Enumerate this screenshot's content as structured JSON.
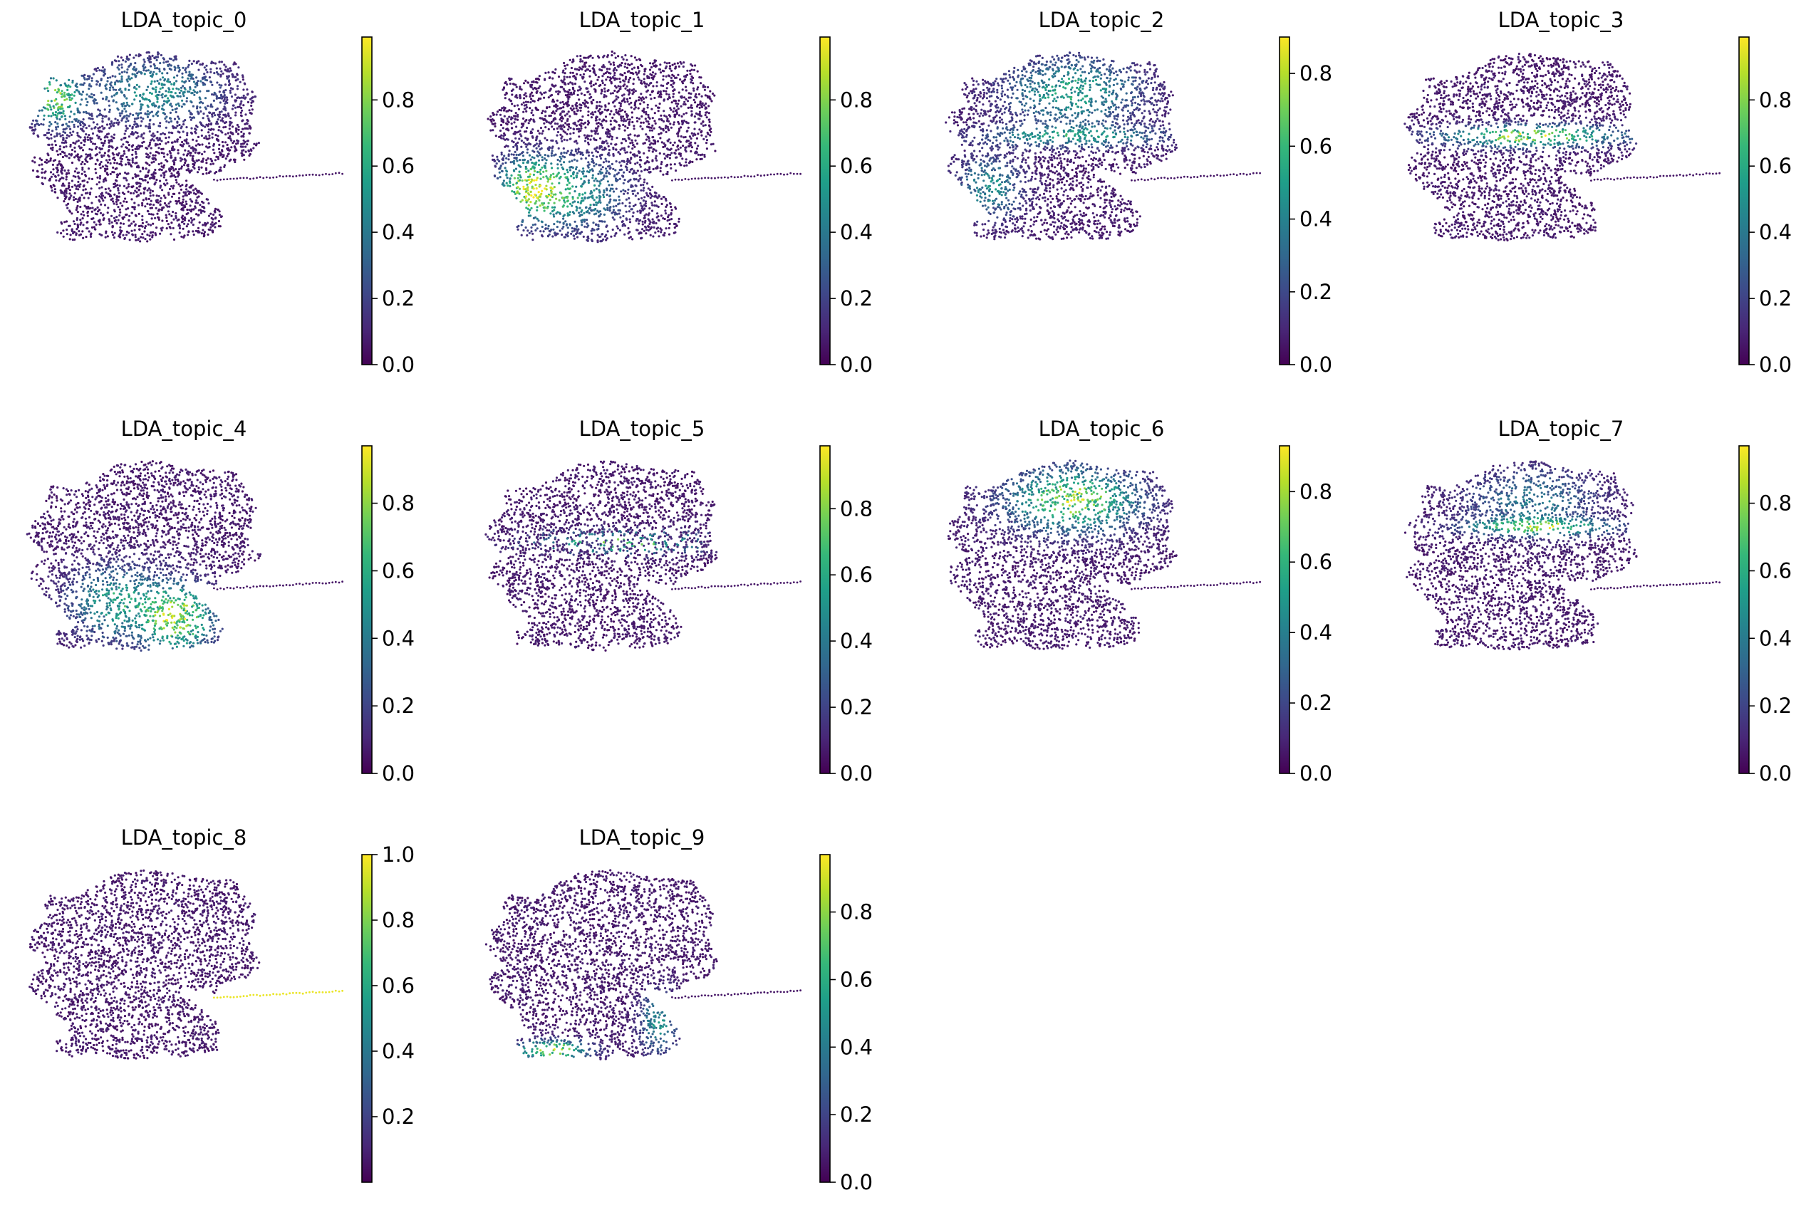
{
  "figure": {
    "type": "embedding_scatter_grid",
    "colormap": "viridis",
    "colormap_stops": [
      "#440154",
      "#482878",
      "#3e4989",
      "#31688e",
      "#26828e",
      "#1f9e89",
      "#35b779",
      "#6ece58",
      "#b5de2b",
      "#fde725"
    ],
    "point_color_low": "#440154",
    "axes_visible": false
  },
  "chart_data": [
    {
      "type": "scatter",
      "title": "LDA_topic_0",
      "colorbar": {
        "range": [
          0.0,
          0.99
        ],
        "ticks": [
          0.0,
          0.2,
          0.4,
          0.6,
          0.8
        ],
        "tick_labels": [
          "0.0",
          "0.2",
          "0.4",
          "0.6",
          "0.8"
        ]
      },
      "high_regions": [
        {
          "region": "upper-left-lobe-edge",
          "level": 0.75
        },
        {
          "region": "upper-lobe",
          "level": 0.45
        }
      ]
    },
    {
      "type": "scatter",
      "title": "LDA_topic_1",
      "colorbar": {
        "range": [
          0.0,
          0.99
        ],
        "ticks": [
          0.0,
          0.2,
          0.4,
          0.6,
          0.8
        ],
        "tick_labels": [
          "0.0",
          "0.2",
          "0.4",
          "0.6",
          "0.8"
        ]
      },
      "high_regions": [
        {
          "region": "lower-lobe-left",
          "level": 0.8
        },
        {
          "region": "lower-lobe-center",
          "level": 0.5
        }
      ]
    },
    {
      "type": "scatter",
      "title": "LDA_topic_2",
      "colorbar": {
        "range": [
          0.0,
          0.9
        ],
        "ticks": [
          0.0,
          0.2,
          0.4,
          0.6,
          0.8
        ],
        "tick_labels": [
          "0.0",
          "0.2",
          "0.4",
          "0.6",
          "0.8"
        ]
      },
      "high_regions": [
        {
          "region": "upper-lobe",
          "level": 0.5
        },
        {
          "region": "middle-band",
          "level": 0.45
        },
        {
          "region": "lower-lobe-left",
          "level": 0.4
        }
      ]
    },
    {
      "type": "scatter",
      "title": "LDA_topic_3",
      "colorbar": {
        "range": [
          0.0,
          0.99
        ],
        "ticks": [
          0.0,
          0.2,
          0.4,
          0.6,
          0.8
        ],
        "tick_labels": [
          "0.0",
          "0.2",
          "0.4",
          "0.6",
          "0.8"
        ]
      },
      "high_regions": [
        {
          "region": "middle-band",
          "level": 0.85
        }
      ]
    },
    {
      "type": "scatter",
      "title": "LDA_topic_4",
      "colorbar": {
        "range": [
          0.0,
          0.97
        ],
        "ticks": [
          0.0,
          0.2,
          0.4,
          0.6,
          0.8
        ],
        "tick_labels": [
          "0.0",
          "0.2",
          "0.4",
          "0.6",
          "0.8"
        ]
      },
      "high_regions": [
        {
          "region": "lower-lobe-right",
          "level": 0.8
        },
        {
          "region": "lower-lobe-center",
          "level": 0.5
        }
      ]
    },
    {
      "type": "scatter",
      "title": "LDA_topic_5",
      "colorbar": {
        "range": [
          0.0,
          0.99
        ],
        "ticks": [
          0.0,
          0.2,
          0.4,
          0.6,
          0.8
        ],
        "tick_labels": [
          "0.0",
          "0.2",
          "0.4",
          "0.6",
          "0.8"
        ]
      },
      "high_regions": [
        {
          "region": "middle-band-speckle",
          "level": 0.7
        }
      ]
    },
    {
      "type": "scatter",
      "title": "LDA_topic_6",
      "colorbar": {
        "range": [
          0.0,
          0.93
        ],
        "ticks": [
          0.0,
          0.2,
          0.4,
          0.6,
          0.8
        ],
        "tick_labels": [
          "0.0",
          "0.2",
          "0.4",
          "0.6",
          "0.8"
        ]
      },
      "high_regions": [
        {
          "region": "upper-lobe",
          "level": 0.75
        }
      ]
    },
    {
      "type": "scatter",
      "title": "LDA_topic_7",
      "colorbar": {
        "range": [
          0.0,
          0.97
        ],
        "ticks": [
          0.0,
          0.2,
          0.4,
          0.6,
          0.8
        ],
        "tick_labels": [
          "0.0",
          "0.2",
          "0.4",
          "0.6",
          "0.8"
        ]
      },
      "high_regions": [
        {
          "region": "upper-lobe-lower-edge",
          "level": 0.7
        },
        {
          "region": "upper-lobe",
          "level": 0.35
        }
      ]
    },
    {
      "type": "scatter",
      "title": "LDA_topic_8",
      "colorbar": {
        "range": [
          0.0,
          1.0
        ],
        "ticks": [
          0.2,
          0.4,
          0.6,
          0.8,
          1.0
        ],
        "tick_labels": [
          "0.2",
          "0.4",
          "0.6",
          "0.8",
          "1.0"
        ]
      },
      "high_regions": [
        {
          "region": "right-streak",
          "level": 1.0
        }
      ]
    },
    {
      "type": "scatter",
      "title": "LDA_topic_9",
      "colorbar": {
        "range": [
          0.0,
          0.97
        ],
        "ticks": [
          0.0,
          0.2,
          0.4,
          0.6,
          0.8
        ],
        "tick_labels": [
          "0.0",
          "0.2",
          "0.4",
          "0.6",
          "0.8"
        ]
      },
      "high_regions": [
        {
          "region": "lower-lobe-bottom-left",
          "level": 0.85
        },
        {
          "region": "lower-lobe-right-edge",
          "level": 0.45
        }
      ]
    }
  ]
}
